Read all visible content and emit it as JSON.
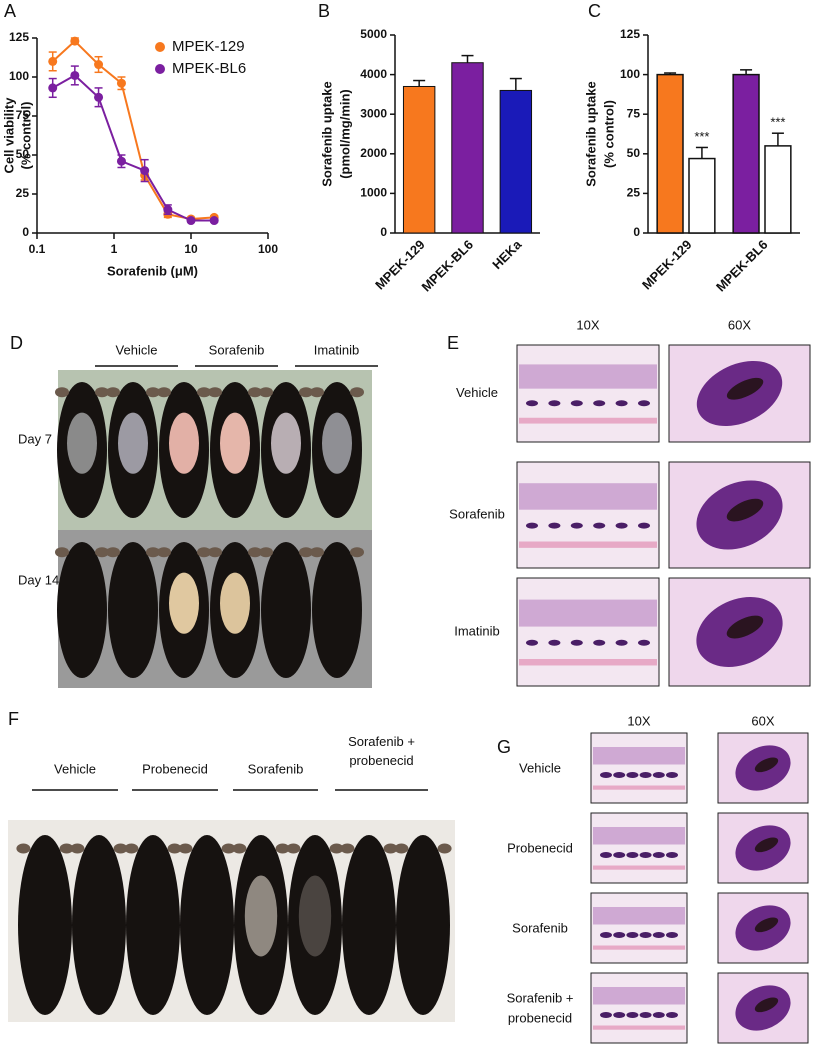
{
  "chart_data": [
    {
      "type": "scatter",
      "panel": "A",
      "xscale": "log",
      "xlabel": "Sorafenib (μM)",
      "ylabel": [
        "Cell viability",
        "(% control)"
      ],
      "x": [
        0.16,
        0.31,
        0.63,
        1.25,
        2.5,
        5,
        10,
        20
      ],
      "series": [
        {
          "name": "MPEK-129",
          "color": "#f7781e",
          "values": [
            110,
            123,
            108,
            96,
            37,
            12,
            9,
            10
          ],
          "errors": [
            6,
            2,
            5,
            4,
            3,
            2,
            1,
            1
          ]
        },
        {
          "name": "MPEK-BL6",
          "color": "#7b1fa0",
          "values": [
            93,
            101,
            87,
            46,
            40,
            15,
            8,
            8
          ],
          "errors": [
            6,
            6,
            6,
            4,
            7,
            3,
            1,
            1
          ]
        }
      ],
      "xlim": [
        0.1,
        100
      ],
      "xticks": [
        0.1,
        1,
        10,
        100
      ],
      "ylim": [
        0,
        125
      ],
      "yticks": [
        0,
        25,
        50,
        75,
        100,
        125
      ],
      "legend": "upper right"
    },
    {
      "type": "bar",
      "panel": "B",
      "ylabel": [
        "Sorafenib uptake",
        "(pmol/mg/min)"
      ],
      "categories": [
        "MPEK-129",
        "MPEK-BL6",
        "HEKa"
      ],
      "values": [
        3700,
        4300,
        3600
      ],
      "errors": [
        150,
        180,
        300
      ],
      "colors": [
        "#f7781e",
        "#7b1fa0",
        "#1a1ab8"
      ],
      "ylim": [
        0,
        5000
      ],
      "yticks": [
        0,
        1000,
        2000,
        3000,
        4000,
        5000
      ]
    },
    {
      "type": "grouped-bar",
      "panel": "C",
      "ylabel": [
        "Sorafenib uptake",
        "(% control)"
      ],
      "categories": [
        "MPEK-129",
        "MPEK-BL6"
      ],
      "series": [
        {
          "colors": [
            "#f7781e",
            "#7b1fa0"
          ],
          "values": [
            100,
            100
          ],
          "errors": [
            1,
            3
          ]
        },
        {
          "color": "#ffffff",
          "values": [
            47,
            55
          ],
          "errors": [
            7,
            8
          ],
          "annotations": [
            "***",
            "***"
          ]
        }
      ],
      "ylim": [
        0,
        125
      ],
      "yticks": [
        0,
        25,
        50,
        75,
        100,
        125
      ]
    }
  ],
  "photo_panels": [
    {
      "panel": "D",
      "groups": [
        "Vehicle",
        "Sorafenib",
        "Imatinib"
      ],
      "rows": [
        "Day 7",
        "Day 14"
      ]
    },
    {
      "panel": "E",
      "columns": [
        "10X",
        "60X"
      ],
      "rows": [
        "Vehicle",
        "Sorafenib",
        "Imatinib"
      ]
    },
    {
      "panel": "F",
      "groups": [
        [
          "Vehicle"
        ],
        [
          "Probenecid"
        ],
        [
          "Sorafenib"
        ],
        [
          "Sorafenib +",
          "probenecid"
        ]
      ]
    },
    {
      "panel": "G",
      "columns": [
        "10X",
        "60X"
      ],
      "rows": [
        [
          "Vehicle"
        ],
        [
          "Probenecid"
        ],
        [
          "Sorafenib"
        ],
        [
          "Sorafenib +",
          "probenecid"
        ]
      ]
    }
  ]
}
